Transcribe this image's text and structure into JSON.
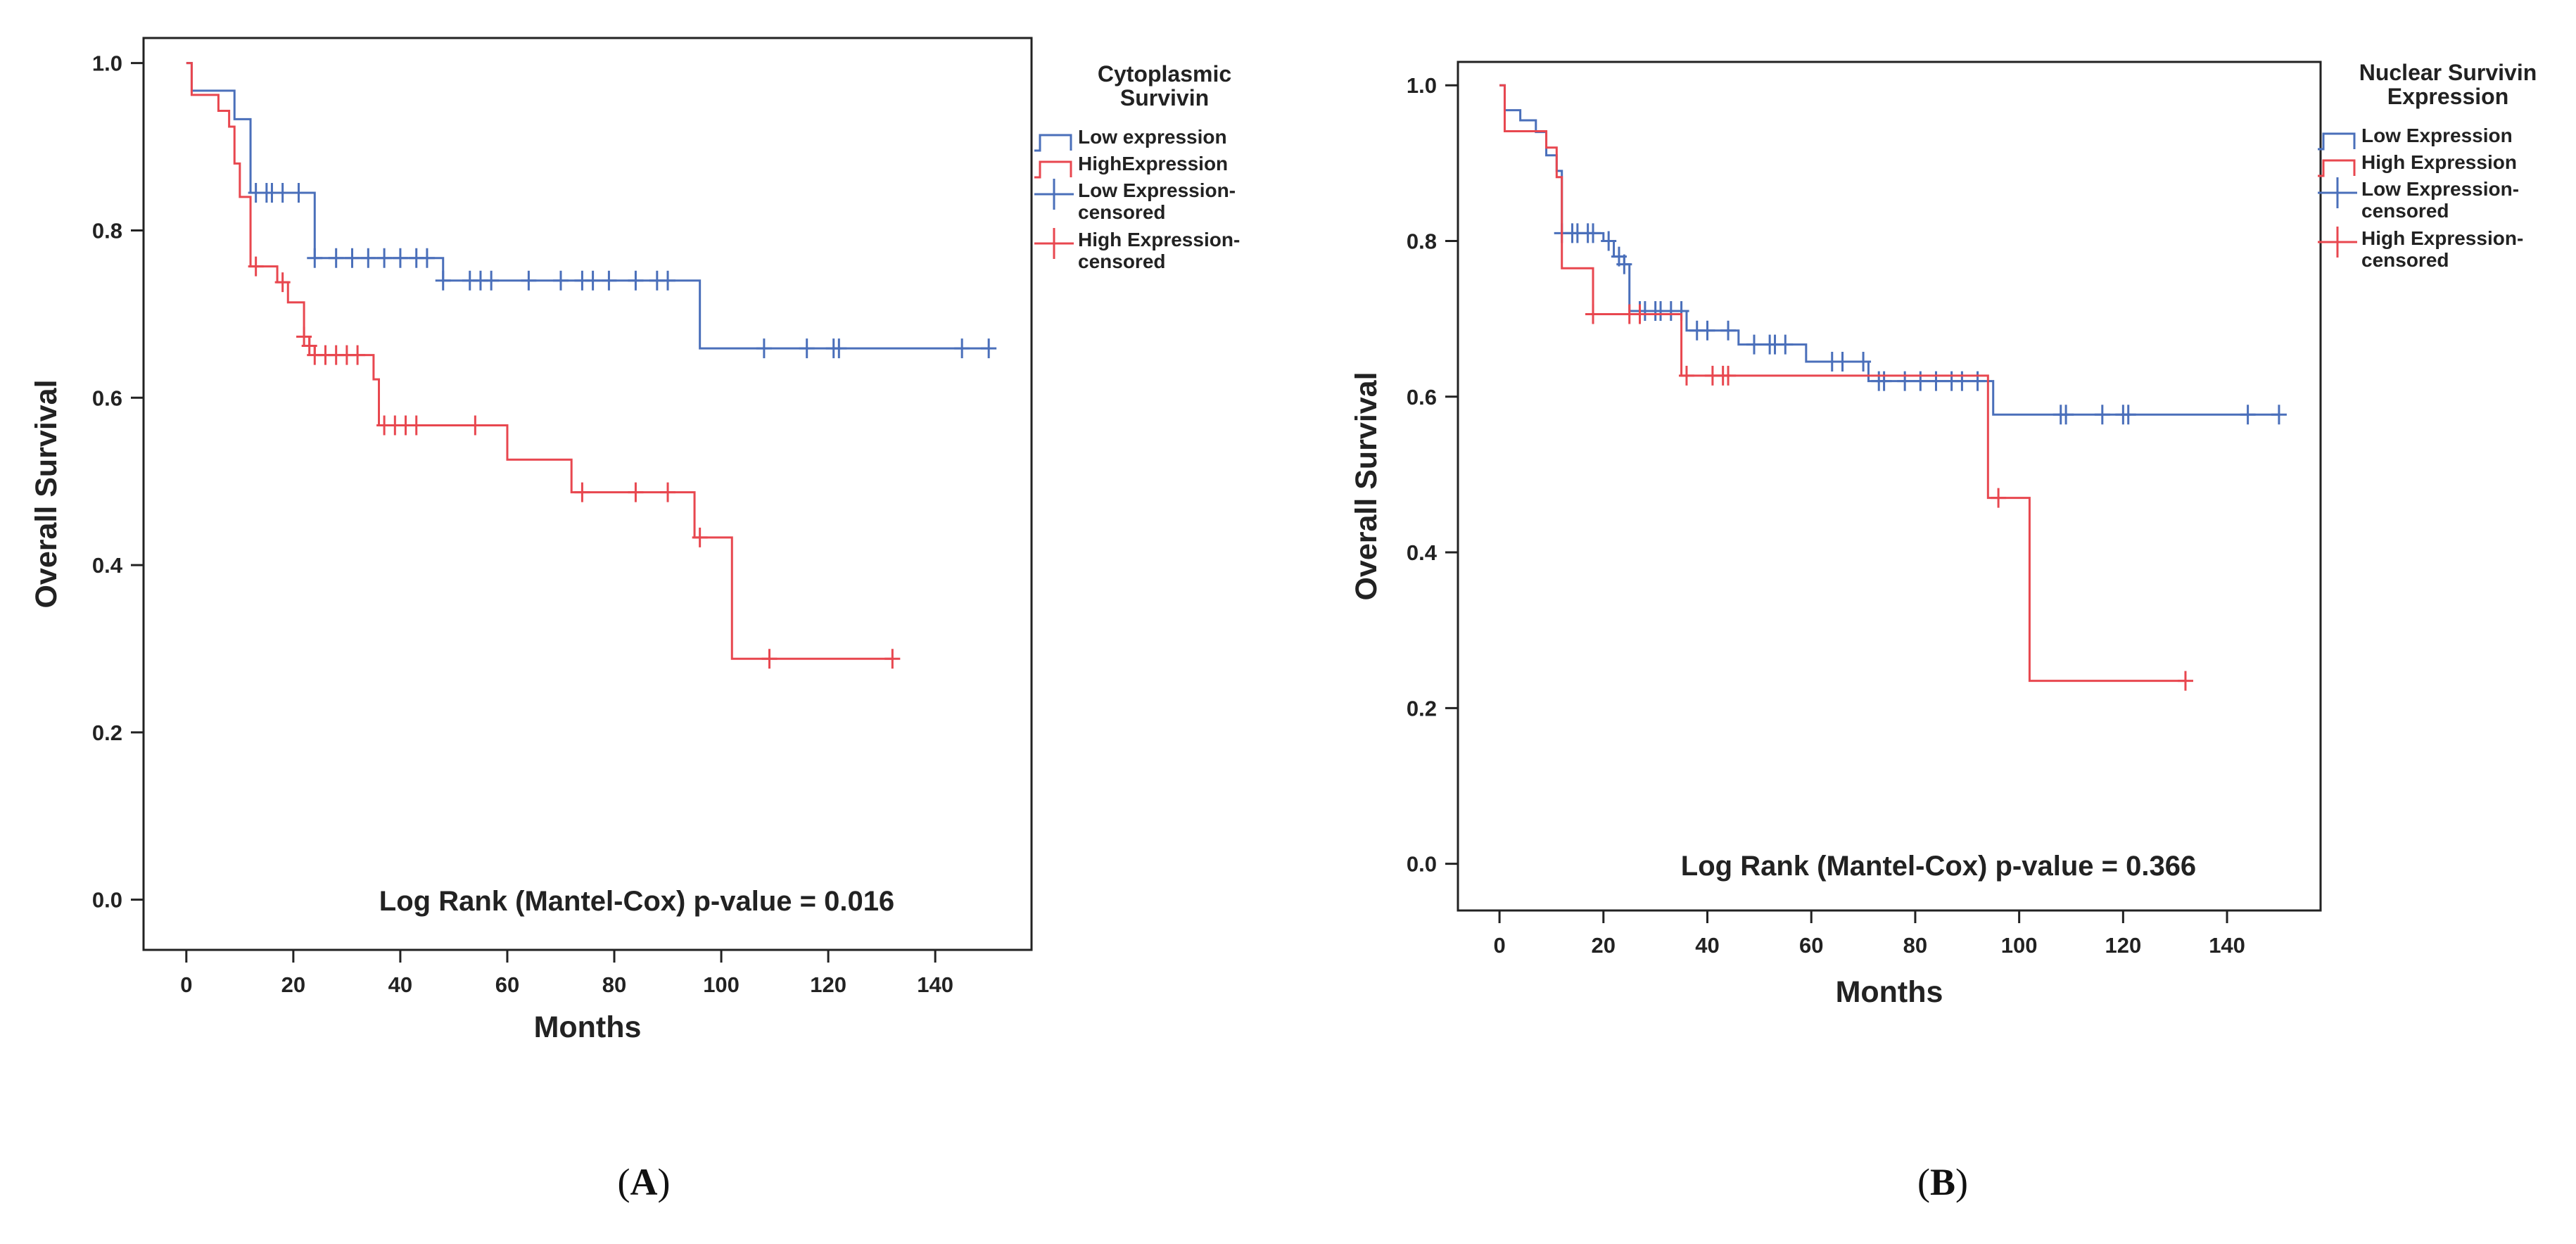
{
  "chart_data": [
    {
      "type": "line",
      "step": true,
      "panel_label": "A",
      "xlabel": "Months",
      "ylabel": "Overall Survival",
      "xlim": [
        -8,
        158
      ],
      "ylim": [
        -0.06,
        1.03
      ],
      "xticks": [
        0,
        20,
        40,
        60,
        80,
        100,
        120,
        140
      ],
      "xtick_labels": [
        "0",
        "20",
        "40",
        "60",
        "80",
        "100",
        "120",
        "140"
      ],
      "yticks": [
        0.0,
        0.2,
        0.4,
        0.6,
        0.8,
        1.0
      ],
      "ytick_labels": [
        "0.0",
        "0.2",
        "0.4",
        "0.6",
        "0.8",
        "1.0"
      ],
      "legend_title": [
        "Cytoplasmic",
        "Survivin"
      ],
      "legend": [
        {
          "kind": "step",
          "color": "#4a6fba",
          "lines": [
            "Low expression"
          ]
        },
        {
          "kind": "step",
          "color": "#e8474f",
          "lines": [
            "HighExpression"
          ]
        },
        {
          "kind": "cross",
          "color": "#4a6fba",
          "lines": [
            "Low Expression-",
            "censored"
          ]
        },
        {
          "kind": "cross",
          "color": "#e8474f",
          "lines": [
            "High Expression-",
            "censored"
          ]
        }
      ],
      "annotation": "Log Rank (Mantel-Cox) p-value = 0.016",
      "series": [
        {
          "name": "Low expression",
          "color": "#4a6fba",
          "steps": [
            [
              1,
              0.967
            ],
            [
              9,
              0.933
            ],
            [
              12,
              0.845
            ],
            [
              24,
              0.767
            ],
            [
              48,
              0.74
            ],
            [
              96,
              0.659
            ]
          ],
          "censored": [
            [
              13,
              0.845
            ],
            [
              15,
              0.845
            ],
            [
              16,
              0.845
            ],
            [
              18,
              0.845
            ],
            [
              21,
              0.845
            ],
            [
              24,
              0.767
            ],
            [
              28,
              0.767
            ],
            [
              31,
              0.767
            ],
            [
              34,
              0.767
            ],
            [
              37,
              0.767
            ],
            [
              40,
              0.767
            ],
            [
              43,
              0.767
            ],
            [
              45,
              0.767
            ],
            [
              48,
              0.74
            ],
            [
              53,
              0.74
            ],
            [
              55,
              0.74
            ],
            [
              57,
              0.74
            ],
            [
              64,
              0.74
            ],
            [
              70,
              0.74
            ],
            [
              74,
              0.74
            ],
            [
              76,
              0.74
            ],
            [
              79,
              0.74
            ],
            [
              84,
              0.74
            ],
            [
              88,
              0.74
            ],
            [
              90,
              0.74
            ],
            [
              108,
              0.659
            ],
            [
              116,
              0.659
            ],
            [
              121,
              0.659
            ],
            [
              122,
              0.659
            ],
            [
              145,
              0.659
            ],
            [
              150,
              0.659
            ]
          ],
          "end": 150
        },
        {
          "name": "HighExpression",
          "color": "#e8474f",
          "steps": [
            [
              1,
              0.962
            ],
            [
              6,
              0.943
            ],
            [
              8,
              0.924
            ],
            [
              9,
              0.88
            ],
            [
              10,
              0.84
            ],
            [
              12,
              0.757
            ],
            [
              17,
              0.738
            ],
            [
              19,
              0.714
            ],
            [
              22,
              0.673
            ],
            [
              23,
              0.662
            ],
            [
              24,
              0.651
            ],
            [
              35,
              0.622
            ],
            [
              36,
              0.567
            ],
            [
              60,
              0.526
            ],
            [
              72,
              0.487
            ],
            [
              95,
              0.433
            ],
            [
              102,
              0.288
            ]
          ],
          "censored": [
            [
              13,
              0.757
            ],
            [
              18,
              0.738
            ],
            [
              22,
              0.673
            ],
            [
              23,
              0.662
            ],
            [
              24,
              0.651
            ],
            [
              26,
              0.651
            ],
            [
              28,
              0.651
            ],
            [
              30,
              0.651
            ],
            [
              32,
              0.651
            ],
            [
              37,
              0.567
            ],
            [
              39,
              0.567
            ],
            [
              41,
              0.567
            ],
            [
              43,
              0.567
            ],
            [
              54,
              0.567
            ],
            [
              74,
              0.487
            ],
            [
              84,
              0.487
            ],
            [
              90,
              0.487
            ],
            [
              96,
              0.433
            ],
            [
              109,
              0.288
            ],
            [
              132,
              0.288
            ]
          ],
          "end": 132
        }
      ]
    },
    {
      "type": "line",
      "step": true,
      "panel_label": "B",
      "xlabel": "Months",
      "ylabel": "Overall Survival",
      "xlim": [
        -8,
        158
      ],
      "ylim": [
        -0.06,
        1.03
      ],
      "xticks": [
        0,
        20,
        40,
        60,
        80,
        100,
        120,
        140
      ],
      "xtick_labels": [
        "0",
        "20",
        "40",
        "60",
        "80",
        "100",
        "120",
        "140"
      ],
      "yticks": [
        0.0,
        0.2,
        0.4,
        0.6,
        0.8,
        1.0
      ],
      "ytick_labels": [
        "0.0",
        "0.2",
        "0.4",
        "0.6",
        "0.8",
        "1.0"
      ],
      "legend_title": [
        "Nuclear Survivin",
        "Expression"
      ],
      "legend": [
        {
          "kind": "step",
          "color": "#4a6fba",
          "lines": [
            "Low Expression"
          ]
        },
        {
          "kind": "step",
          "color": "#e8474f",
          "lines": [
            "High Expression"
          ]
        },
        {
          "kind": "cross",
          "color": "#4a6fba",
          "lines": [
            "Low Expression-",
            "censored"
          ]
        },
        {
          "kind": "cross",
          "color": "#e8474f",
          "lines": [
            "High Expression-",
            "censored"
          ]
        }
      ],
      "annotation": "Log Rank (Mantel-Cox) p-value = 0.366",
      "series": [
        {
          "name": "Low Expression",
          "color": "#4a6fba",
          "steps": [
            [
              1,
              0.968
            ],
            [
              4,
              0.955
            ],
            [
              7,
              0.94
            ],
            [
              9,
              0.91
            ],
            [
              11,
              0.89
            ],
            [
              12,
              0.81
            ],
            [
              20,
              0.8
            ],
            [
              22,
              0.78
            ],
            [
              24,
              0.77
            ],
            [
              25,
              0.71
            ],
            [
              36,
              0.685
            ],
            [
              46,
              0.667
            ],
            [
              59,
              0.645
            ],
            [
              71,
              0.62
            ],
            [
              95,
              0.577
            ]
          ],
          "censored": [
            [
              12,
              0.81
            ],
            [
              14,
              0.81
            ],
            [
              15,
              0.81
            ],
            [
              17,
              0.81
            ],
            [
              18,
              0.81
            ],
            [
              21,
              0.8
            ],
            [
              23,
              0.78
            ],
            [
              24,
              0.77
            ],
            [
              27,
              0.71
            ],
            [
              28,
              0.71
            ],
            [
              30,
              0.71
            ],
            [
              31,
              0.71
            ],
            [
              33,
              0.71
            ],
            [
              35,
              0.71
            ],
            [
              38,
              0.685
            ],
            [
              40,
              0.685
            ],
            [
              44,
              0.685
            ],
            [
              49,
              0.667
            ],
            [
              52,
              0.667
            ],
            [
              53,
              0.667
            ],
            [
              55,
              0.667
            ],
            [
              64,
              0.645
            ],
            [
              66,
              0.645
            ],
            [
              70,
              0.645
            ],
            [
              73,
              0.62
            ],
            [
              74,
              0.62
            ],
            [
              78,
              0.62
            ],
            [
              81,
              0.62
            ],
            [
              84,
              0.62
            ],
            [
              87,
              0.62
            ],
            [
              89,
              0.62
            ],
            [
              92,
              0.62
            ],
            [
              108,
              0.577
            ],
            [
              109,
              0.577
            ],
            [
              116,
              0.577
            ],
            [
              120,
              0.577
            ],
            [
              121,
              0.577
            ],
            [
              144,
              0.577
            ],
            [
              150,
              0.577
            ]
          ],
          "end": 150
        },
        {
          "name": "High Expression",
          "color": "#e8474f",
          "steps": [
            [
              1,
              0.941
            ],
            [
              9,
              0.92
            ],
            [
              11,
              0.882
            ],
            [
              12,
              0.765
            ],
            [
              18,
              0.706
            ],
            [
              35,
              0.627
            ],
            [
              94,
              0.47
            ],
            [
              102,
              0.235
            ]
          ],
          "censored": [
            [
              18,
              0.706
            ],
            [
              25,
              0.706
            ],
            [
              27,
              0.706
            ],
            [
              36,
              0.627
            ],
            [
              41,
              0.627
            ],
            [
              43,
              0.627
            ],
            [
              44,
              0.627
            ],
            [
              96,
              0.47
            ],
            [
              132,
              0.235
            ]
          ],
          "end": 132
        }
      ]
    }
  ]
}
